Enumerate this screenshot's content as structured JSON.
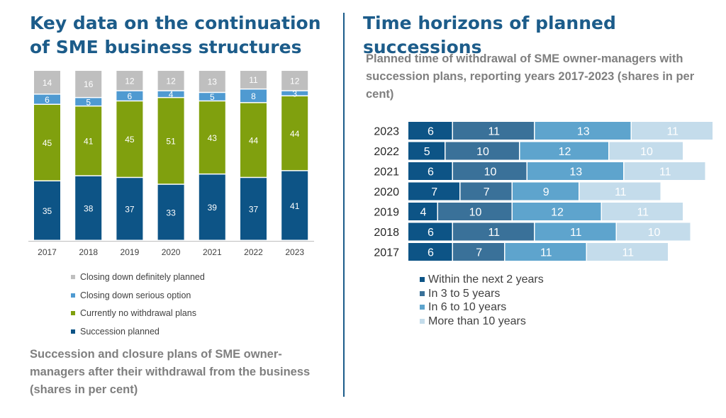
{
  "left": {
    "title": "Key data on the continuation of SME business structures",
    "caption": "Succession and closure plans of SME owner-managers after their withdrawal from the business (shares in per cent)"
  },
  "right": {
    "title": "Time horizons of planned successions",
    "subtitle": "Planned time of withdrawal of SME owner-managers with succession plans, reporting years 2017-2023 (shares in per cent)"
  },
  "chart_data": [
    {
      "type": "bar",
      "stacked": true,
      "orientation": "vertical",
      "categories": [
        "2017",
        "2018",
        "2019",
        "2020",
        "2021",
        "2022",
        "2023"
      ],
      "series": [
        {
          "name": "Succession planned",
          "color": "#0d5486",
          "label_color": "#ffffff",
          "values": [
            35,
            38,
            37,
            33,
            39,
            37,
            41
          ]
        },
        {
          "name": "Currently no withdrawal plans",
          "color": "#80a00e",
          "label_color": "#ffffff",
          "values": [
            45,
            41,
            45,
            51,
            43,
            44,
            44
          ]
        },
        {
          "name": "Closing down serious option",
          "color": "#4f9ad1",
          "label_color": "#ffffff",
          "values": [
            6,
            5,
            6,
            4,
            5,
            8,
            3
          ]
        },
        {
          "name": "Closing down definitely planned",
          "color": "#bfbfbf",
          "label_color": "#ffffff",
          "values": [
            14,
            16,
            12,
            12,
            13,
            11,
            12
          ]
        }
      ],
      "legend_order": [
        "Closing down definitely planned",
        "Closing down serious option",
        "Currently no withdrawal plans",
        "Succession planned"
      ],
      "legend": "bottom",
      "grid": false
    },
    {
      "type": "bar",
      "stacked": true,
      "orientation": "horizontal",
      "categories": [
        "2023",
        "2022",
        "2021",
        "2020",
        "2019",
        "2018",
        "2017"
      ],
      "series": [
        {
          "name": "Within the next 2 years",
          "color": "#0d5486",
          "label_color": "#ffffff",
          "values": [
            6,
            5,
            6,
            7,
            4,
            6,
            6
          ]
        },
        {
          "name": "In 3 to 5 years",
          "color": "#3a7199",
          "label_color": "#ffffff",
          "values": [
            11,
            10,
            10,
            7,
            10,
            11,
            7
          ]
        },
        {
          "name": "In 6 to 10 years",
          "color": "#5ea4cd",
          "label_color": "#ffffff",
          "values": [
            13,
            12,
            13,
            9,
            12,
            11,
            11
          ]
        },
        {
          "name": "More than 10 years",
          "color": "#c4dceb",
          "label_color": "#ffffff",
          "values": [
            11,
            10,
            11,
            11,
            11,
            10,
            11
          ]
        }
      ],
      "legend": "bottom",
      "grid": false
    }
  ]
}
